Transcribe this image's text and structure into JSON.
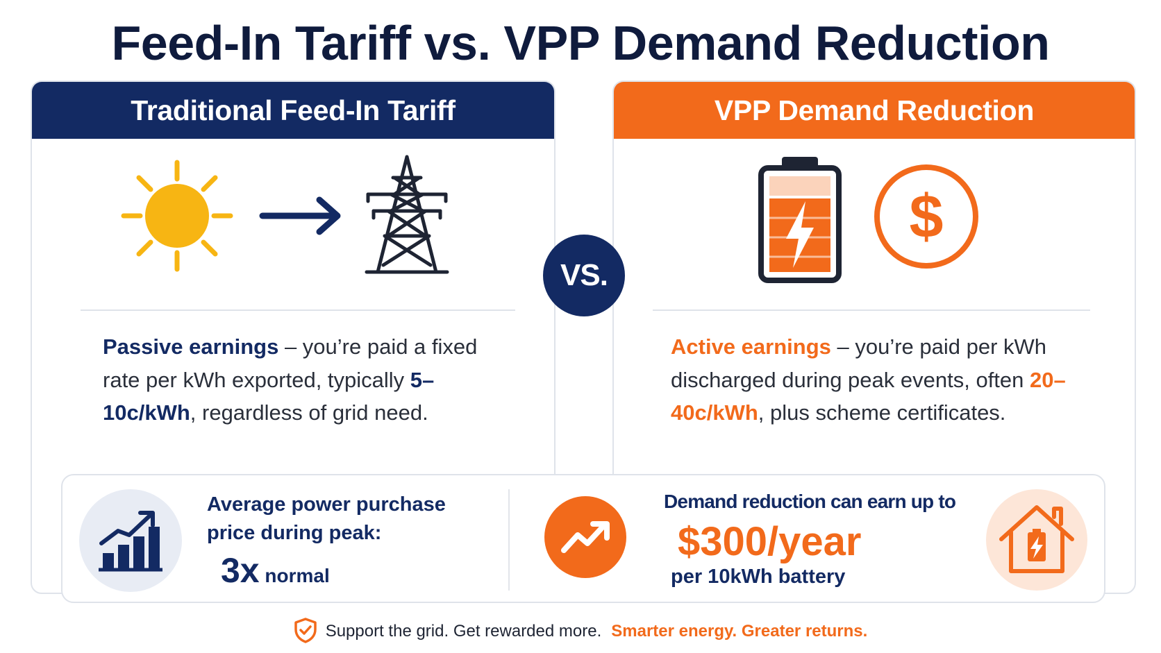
{
  "title": "Feed-In Tariff vs. VPP Demand Reduction",
  "left": {
    "header": "Traditional Feed-In Tariff",
    "icons": [
      "sun-icon",
      "arrow-right-icon",
      "transmission-tower-icon"
    ],
    "highlight": "Passive earnings",
    "text_a": " – you’re paid a fixed rate per kWh exported, typically ",
    "rate": "5–10c/kWh",
    "text_b": ", regardless of grid need."
  },
  "vs_label": "VS.",
  "right": {
    "header": "VPP Demand Reduction",
    "icons": [
      "battery-charging-icon",
      "dollar-circle-icon"
    ],
    "highlight": "Active earnings",
    "text_a": " – you’re paid per kWh discharged during peak events, often ",
    "rate": "20–40c/kWh",
    "text_b": ", plus scheme certificates."
  },
  "stats": {
    "left": {
      "icon": "bar-chart-growth-icon",
      "label": "Average power purchase price during peak:",
      "multiplier": "3x",
      "multiplier_suffix": " normal"
    },
    "right": {
      "icon": "trend-up-icon",
      "label": "Demand reduction can earn up to",
      "amount": "$300/year",
      "sub": "per 10kWh battery",
      "house_icon": "house-battery-icon"
    }
  },
  "footer": {
    "icon": "shield-check-icon",
    "text": "Support the grid. Get rewarded more.",
    "accent": "Smarter energy. Greater returns."
  },
  "colors": {
    "navy": "#132a63",
    "orange": "#f26a1b",
    "sun": "#f7b513",
    "light_orange": "#fbd3bb"
  }
}
